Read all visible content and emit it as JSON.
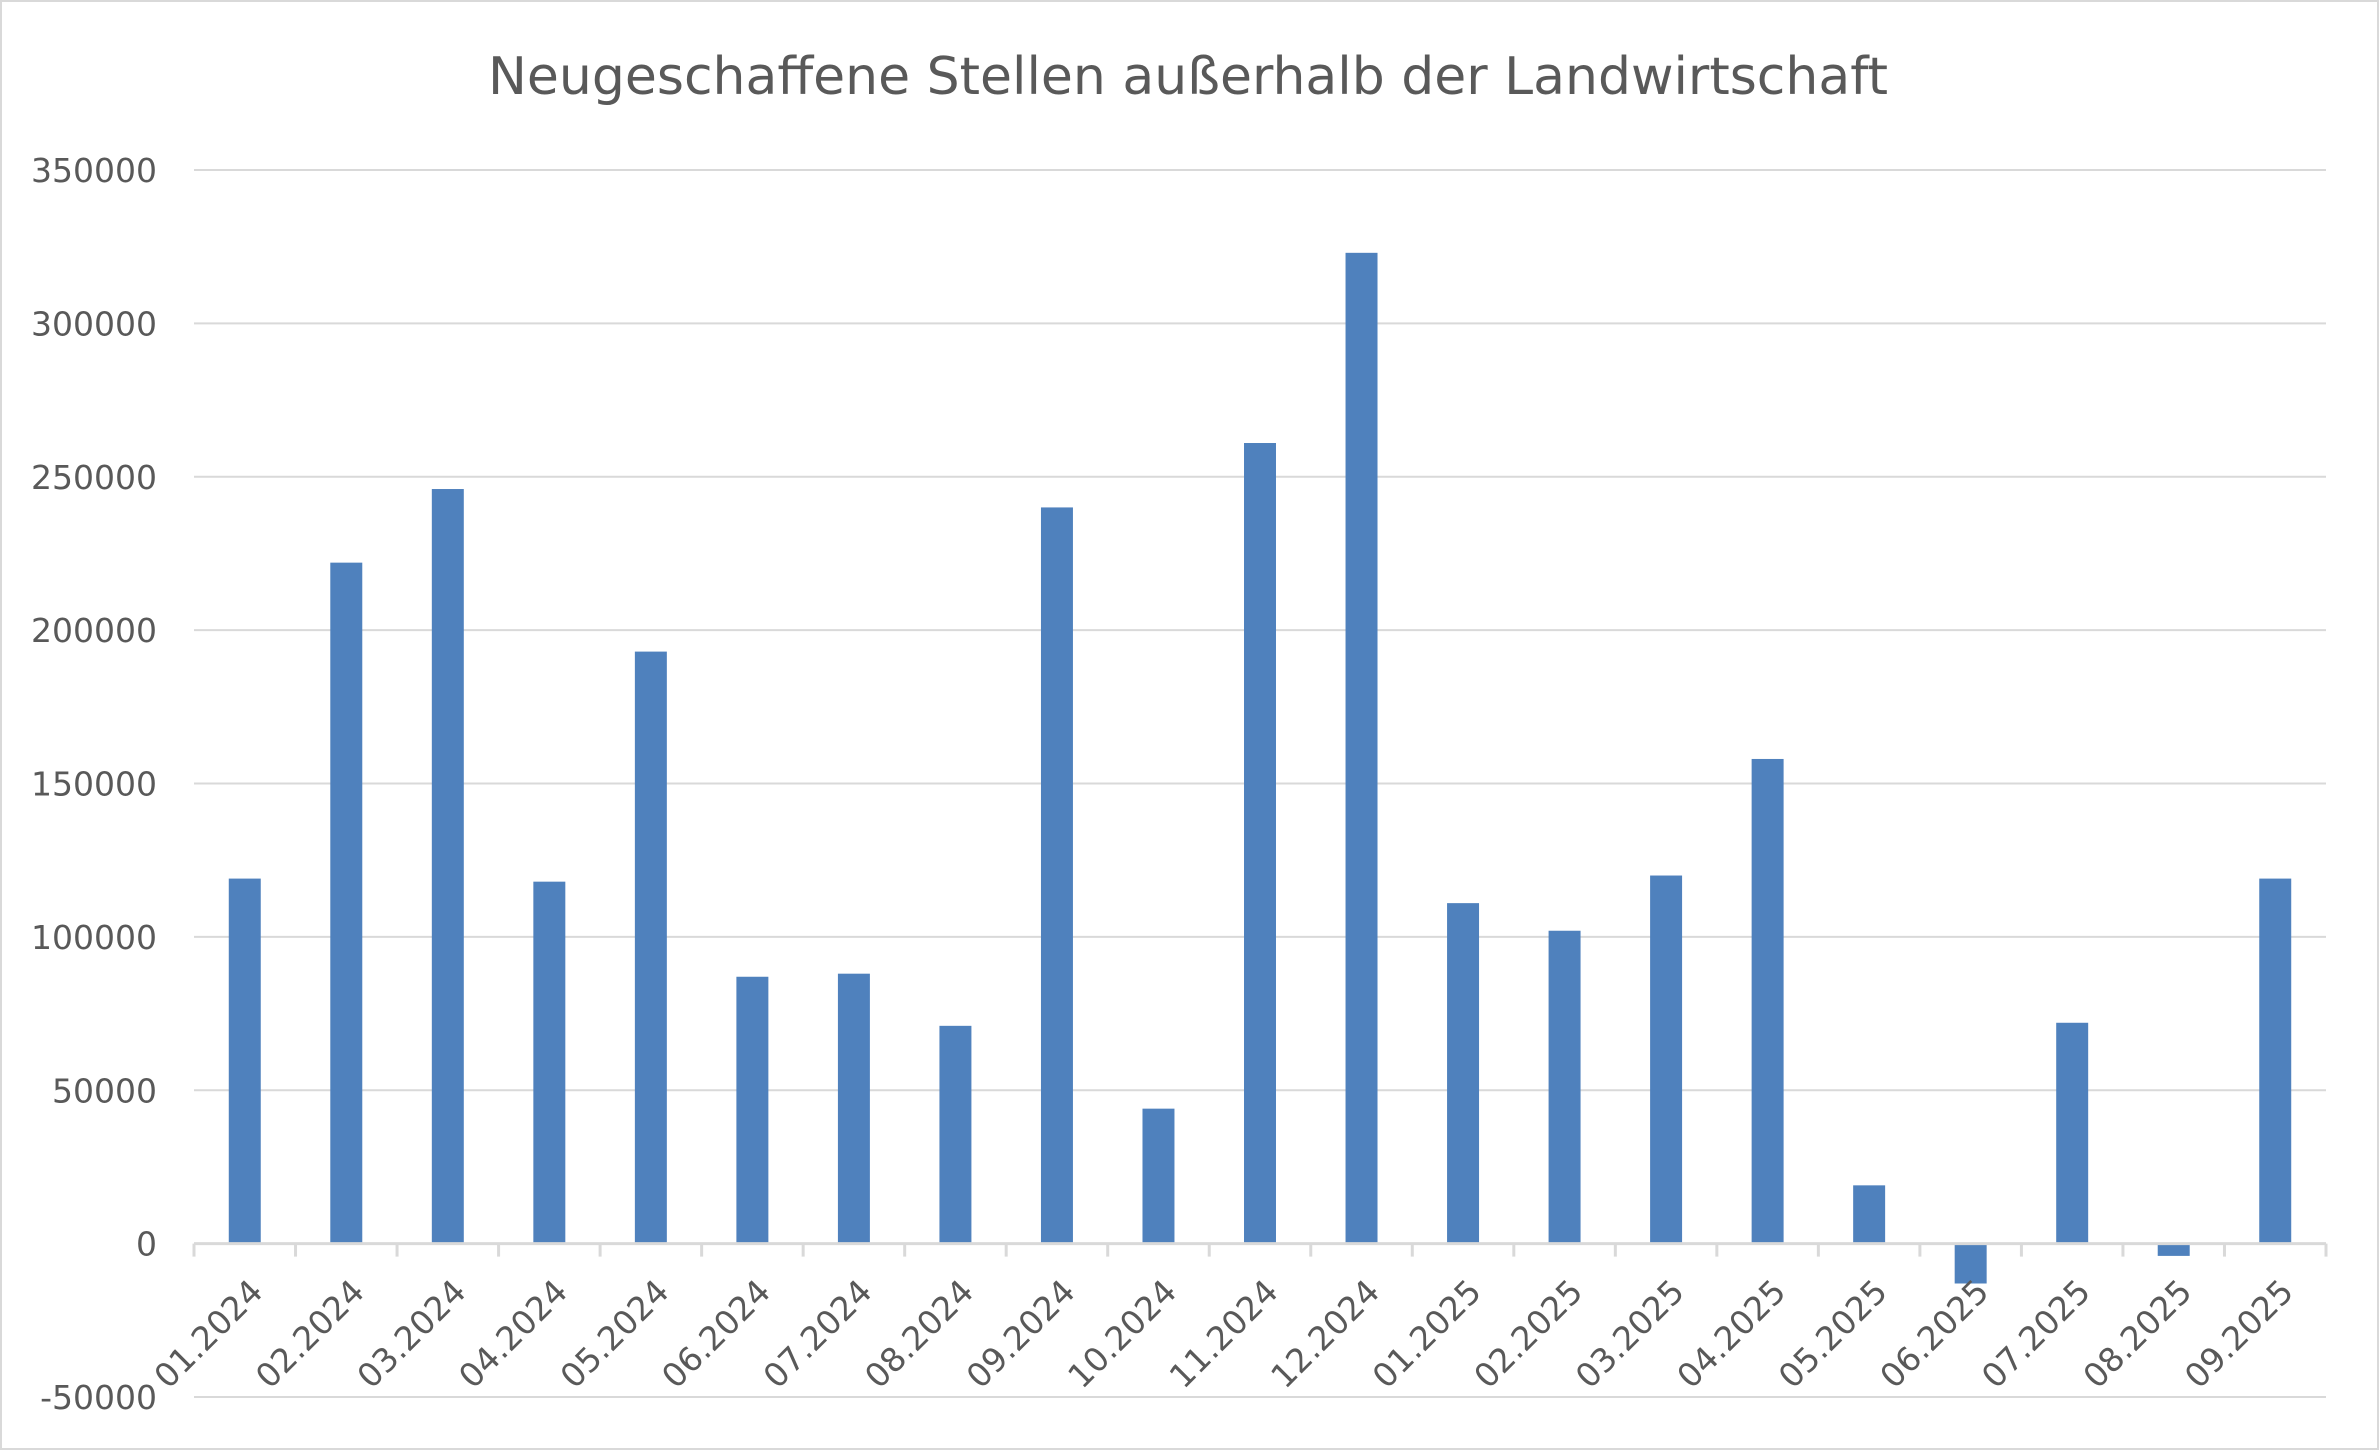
{
  "chart_data": {
    "type": "bar",
    "title": "Neugeschaffene Stellen außerhalb der Landwirtschaft",
    "xlabel": "",
    "ylabel": "",
    "categories": [
      "01.2024",
      "02.2024",
      "03.2024",
      "04.2024",
      "05.2024",
      "06.2024",
      "07.2024",
      "08.2024",
      "09.2024",
      "10.2024",
      "11.2024",
      "12.2024",
      "01.2025",
      "02.2025",
      "03.2025",
      "04.2025",
      "05.2025",
      "06.2025",
      "07.2025",
      "08.2025",
      "09.2025"
    ],
    "values": [
      119000,
      222000,
      246000,
      118000,
      193000,
      87000,
      88000,
      71000,
      240000,
      44000,
      261000,
      323000,
      111000,
      102000,
      120000,
      158000,
      19000,
      -13000,
      72000,
      -4000,
      119000
    ],
    "ylim": [
      -50000,
      350000
    ],
    "yticks": [
      -50000,
      0,
      50000,
      100000,
      150000,
      200000,
      250000,
      300000,
      350000
    ],
    "grid": true,
    "legend": "none",
    "colors": {
      "bar": "#4f81bd",
      "grid": "#d9d9d9",
      "text": "#595959"
    }
  }
}
